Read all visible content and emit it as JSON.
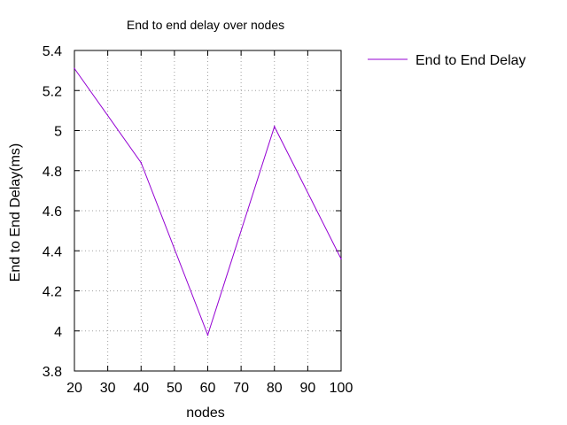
{
  "chart_data": {
    "type": "line",
    "title": "End to end delay over nodes",
    "xlabel": "nodes",
    "ylabel": "End to End Delay(ms)",
    "xlim": [
      20,
      100
    ],
    "ylim": [
      3.8,
      5.4
    ],
    "xticks": [
      20,
      30,
      40,
      50,
      60,
      70,
      80,
      90,
      100
    ],
    "yticks": [
      3.8,
      4,
      4.2,
      4.4,
      4.6,
      4.8,
      5,
      5.2,
      5.4
    ],
    "xtick_labels": [
      "20",
      "30",
      "40",
      "50",
      "60",
      "70",
      "80",
      "90",
      "100"
    ],
    "ytick_labels": [
      "3.8",
      "4",
      "4.2",
      "4.4",
      "4.6",
      "4.8",
      "5",
      "5.2",
      "5.4"
    ],
    "grid": true,
    "legend_position": "right",
    "series": [
      {
        "name": "End to End Delay",
        "color": "#9400d3",
        "x": [
          20,
          40,
          60,
          80,
          100
        ],
        "y": [
          5.31,
          4.84,
          3.98,
          5.02,
          4.36
        ]
      }
    ]
  }
}
